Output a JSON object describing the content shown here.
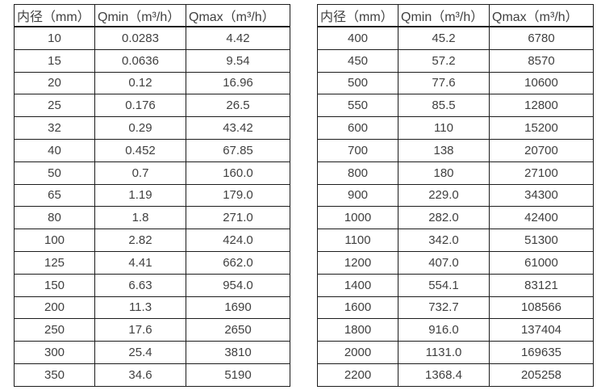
{
  "colors": {
    "border": "#1c1c1c",
    "text": "#404040",
    "background": "#ffffff"
  },
  "tables": [
    {
      "headers": [
        "内径（mm）",
        "Qmin（m³/h）",
        "Qmax（m³/h）"
      ],
      "rows": [
        [
          "10",
          "0.0283",
          "4.42"
        ],
        [
          "15",
          "0.0636",
          "9.54"
        ],
        [
          "20",
          "0.12",
          "16.96"
        ],
        [
          "25",
          "0.176",
          "26.5"
        ],
        [
          "32",
          "0.29",
          "43.42"
        ],
        [
          "40",
          "0.452",
          "67.85"
        ],
        [
          "50",
          "0.7",
          "160.0"
        ],
        [
          "65",
          "1.19",
          "179.0"
        ],
        [
          "80",
          "1.8",
          "271.0"
        ],
        [
          "100",
          "2.82",
          "424.0"
        ],
        [
          "125",
          "4.41",
          "662.0"
        ],
        [
          "150",
          "6.63",
          "954.0"
        ],
        [
          "200",
          "11.3",
          "1690"
        ],
        [
          "250",
          "17.6",
          "2650"
        ],
        [
          "300",
          "25.4",
          "3810"
        ],
        [
          "350",
          "34.6",
          "5190"
        ]
      ]
    },
    {
      "headers": [
        "内径（mm）",
        "Qmin（m³/h）",
        "Qmax（m³/h）"
      ],
      "rows": [
        [
          "400",
          "45.2",
          "6780"
        ],
        [
          "450",
          "57.2",
          "8570"
        ],
        [
          "500",
          "77.6",
          "10600"
        ],
        [
          "550",
          "85.5",
          "12800"
        ],
        [
          "600",
          "110",
          "15200"
        ],
        [
          "700",
          "138",
          "20700"
        ],
        [
          "800",
          "180",
          "27100"
        ],
        [
          "900",
          "229.0",
          "34300"
        ],
        [
          "1000",
          "282.0",
          "42400"
        ],
        [
          "1100",
          "342.0",
          "51300"
        ],
        [
          "1200",
          "407.0",
          "61000"
        ],
        [
          "1400",
          "554.1",
          "83121"
        ],
        [
          "1600",
          "732.7",
          "108566"
        ],
        [
          "1800",
          "916.0",
          "137404"
        ],
        [
          "2000",
          "1131.0",
          "169635"
        ],
        [
          "2200",
          "1368.4",
          "205258"
        ]
      ]
    }
  ]
}
